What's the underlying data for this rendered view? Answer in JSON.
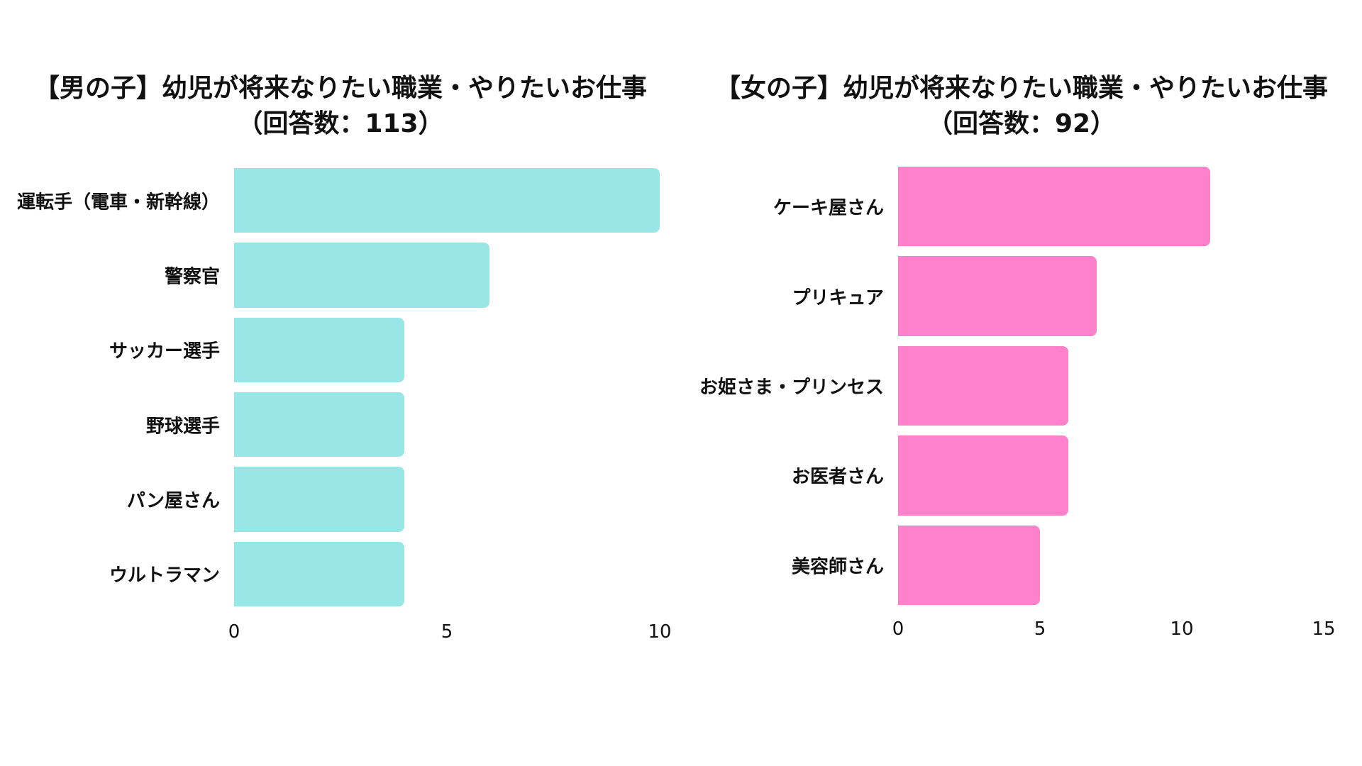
{
  "chart_data": [
    {
      "type": "bar",
      "orientation": "horizontal",
      "title": "【男の子】幼児が将来なりたい職業・やりたいお仕事",
      "subtitle": "（回答数：113）",
      "categories": [
        "運転手（電車・新幹線）",
        "警察官",
        "サッカー選手",
        "野球選手",
        "パン屋さん",
        "ウルトラマン"
      ],
      "values": [
        10,
        6,
        4,
        4,
        4,
        4
      ],
      "xticks": [
        "0",
        "5",
        "10"
      ],
      "xlim": [
        0,
        10
      ],
      "color": "#98E6E6",
      "grid": false
    },
    {
      "type": "bar",
      "orientation": "horizontal",
      "title": "【女の子】幼児が将来なりたい職業・やりたいお仕事",
      "subtitle": "（回答数：92）",
      "categories": [
        "ケーキ屋さん",
        "プリキュア",
        "お姫さま・プリンセス",
        "お医者さん",
        "美容師さん"
      ],
      "values": [
        11,
        7,
        6,
        6,
        5
      ],
      "xticks": [
        "0",
        "5",
        "10",
        "15"
      ],
      "xlim": [
        0,
        15
      ],
      "color": "#FF80CB",
      "grid": false
    }
  ]
}
